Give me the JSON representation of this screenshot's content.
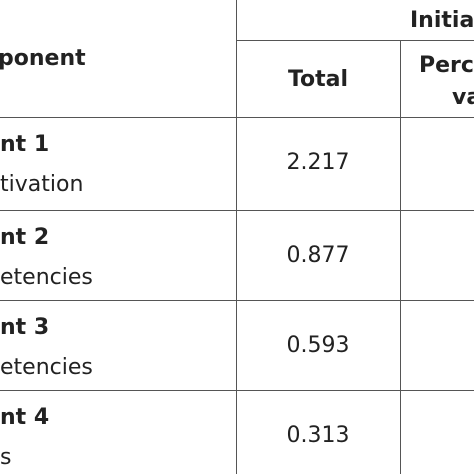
{
  "table": {
    "header": {
      "group": "Initia",
      "component": "ponent",
      "total": "Total",
      "percent": [
        "Perc",
        "va"
      ]
    },
    "rows": [
      {
        "name": "nt 1",
        "description": "tivation",
        "total": "2.217"
      },
      {
        "name": "nt 2",
        "description": "etencies",
        "total": "0.877"
      },
      {
        "name": "nt 3",
        "description": "etencies",
        "total": "0.593"
      },
      {
        "name": "nt 4",
        "description": "s",
        "total": "0.313"
      }
    ]
  }
}
